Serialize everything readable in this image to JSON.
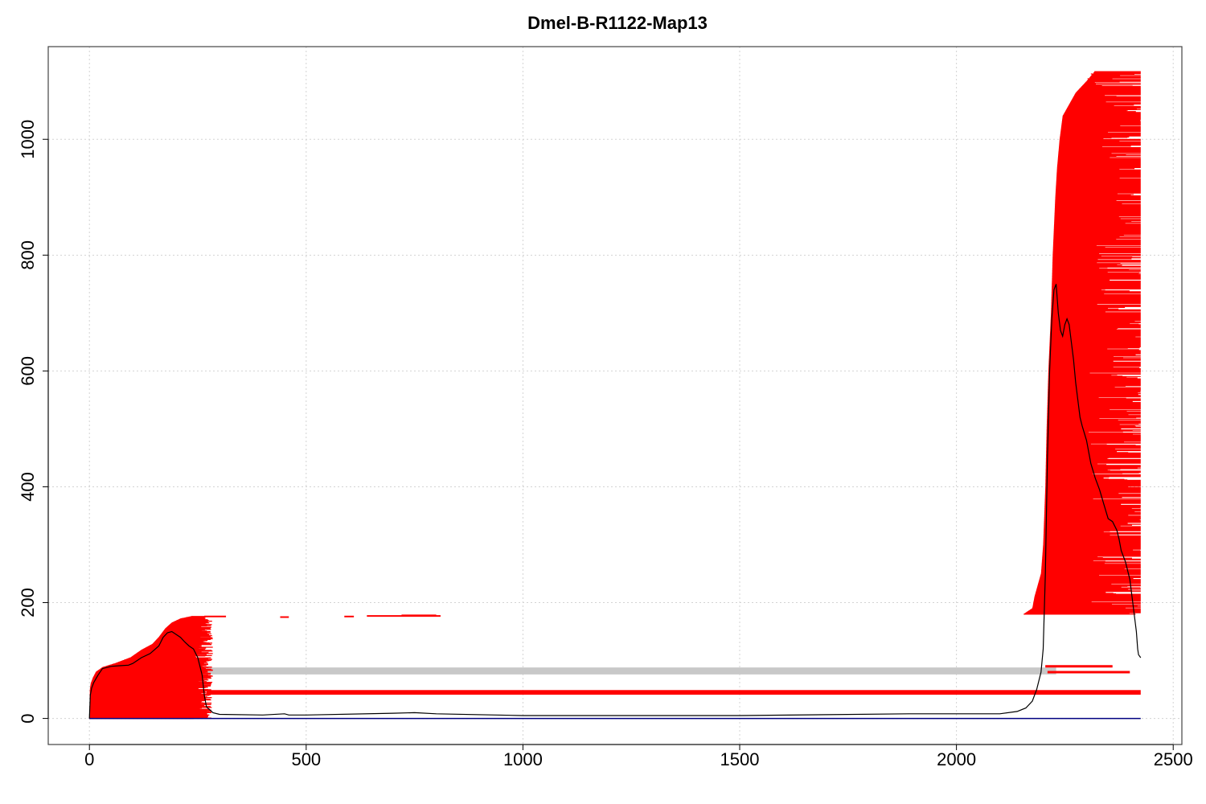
{
  "chart_data": {
    "type": "line",
    "title": "Dmel-B-R1122-Map13",
    "xlabel": "",
    "ylabel": "",
    "xlim": [
      -95,
      2520
    ],
    "ylim": [
      -45,
      1160
    ],
    "x_ticks": [
      0,
      500,
      1000,
      1500,
      2000,
      2500
    ],
    "y_ticks": [
      0,
      200,
      400,
      600,
      800,
      1000
    ],
    "grid": true,
    "colors": {
      "reads": "#ff0000",
      "coverage": "#000000",
      "baseline": "#000080",
      "gap": "#c8c8c8",
      "grid": "#d3d3d3"
    },
    "baseline": {
      "x": [
        0,
        2425
      ],
      "y": 0
    },
    "gray_band": {
      "x": [
        270,
        2230
      ],
      "y": [
        76,
        88
      ]
    },
    "red_band": {
      "x": [
        270,
        2425
      ],
      "y": [
        41,
        49
      ]
    },
    "left_cluster": {
      "x_end_range": [
        240,
        285
      ],
      "y_range": [
        0,
        176
      ],
      "edge": {
        "y": [
          0,
          50,
          60,
          70,
          80,
          88,
          95,
          105,
          118,
          128,
          140,
          155,
          165,
          172,
          176
        ],
        "x": [
          0,
          1,
          3,
          8,
          15,
          30,
          60,
          95,
          120,
          145,
          160,
          175,
          190,
          210,
          235
        ]
      }
    },
    "right_cluster": {
      "x_end_range": [
        2300,
        2425
      ],
      "y_range": [
        180,
        1118
      ],
      "edge": {
        "y": [
          180,
          190,
          210,
          250,
          300,
          400,
          500,
          600,
          650,
          700,
          750,
          800,
          850,
          900,
          950,
          1000,
          1040,
          1060,
          1080,
          1100,
          1118
        ],
        "x": [
          2155,
          2175,
          2180,
          2195,
          2200,
          2205,
          2208,
          2212,
          2215,
          2218,
          2220,
          2222,
          2225,
          2228,
          2232,
          2238,
          2245,
          2260,
          2275,
          2300,
          2320
        ]
      }
    },
    "right_segments": [
      {
        "x": [
          2205,
          2360
        ],
        "y": 90
      },
      {
        "x": [
          2210,
          2400
        ],
        "y": 80
      }
    ],
    "small_reads": [
      {
        "x": [
          265,
          315
        ],
        "y": 176
      },
      {
        "x": [
          440,
          460
        ],
        "y": 175
      },
      {
        "x": [
          588,
          610
        ],
        "y": 176
      },
      {
        "x": [
          640,
          810
        ],
        "y": 177
      },
      {
        "x": [
          720,
          800
        ],
        "y": 178
      }
    ],
    "coverage_line": {
      "x": [
        0,
        2,
        5,
        10,
        20,
        30,
        50,
        70,
        90,
        100,
        110,
        120,
        140,
        160,
        170,
        180,
        190,
        200,
        210,
        220,
        230,
        240,
        250,
        260,
        265,
        270,
        285,
        300,
        400,
        450,
        460,
        500,
        700,
        750,
        800,
        1000,
        1500,
        1890,
        2100,
        2140,
        2160,
        2175,
        2185,
        2195,
        2200,
        2205,
        2210,
        2215,
        2220,
        2225,
        2230,
        2235,
        2240,
        2245,
        2250,
        2255,
        2260,
        2265,
        2270,
        2275,
        2280,
        2285,
        2290,
        2300,
        2310,
        2320,
        2330,
        2340,
        2350,
        2360,
        2370,
        2375,
        2380,
        2390,
        2400,
        2405,
        2410,
        2415,
        2418,
        2420,
        2425
      ],
      "y": [
        0,
        40,
        52,
        62,
        75,
        86,
        90,
        91,
        92,
        95,
        100,
        105,
        112,
        125,
        140,
        148,
        150,
        145,
        140,
        132,
        125,
        120,
        105,
        75,
        40,
        20,
        10,
        7,
        6,
        8,
        6,
        6,
        9,
        10,
        8,
        5,
        5,
        8,
        8,
        12,
        18,
        30,
        50,
        80,
        120,
        250,
        450,
        600,
        690,
        740,
        750,
        700,
        670,
        660,
        680,
        690,
        680,
        650,
        620,
        580,
        550,
        520,
        505,
        480,
        440,
        415,
        395,
        370,
        345,
        340,
        325,
        310,
        290,
        270,
        240,
        210,
        180,
        150,
        120,
        110,
        105
      ]
    }
  }
}
